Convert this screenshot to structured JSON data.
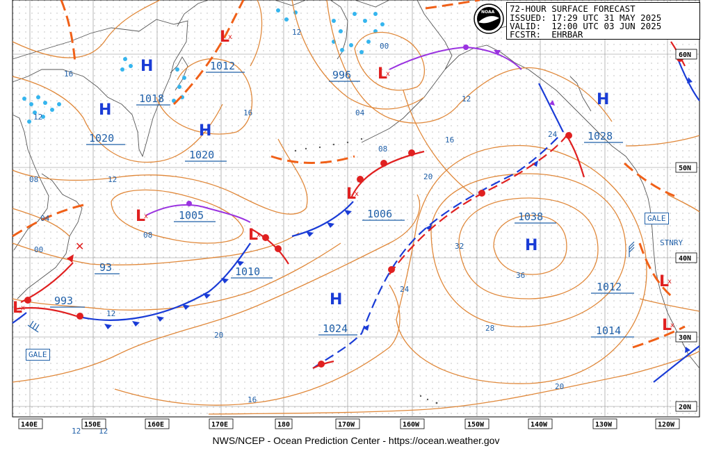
{
  "header": {
    "title_line": "72-HOUR SURFACE FORECAST",
    "issued_line": "ISSUED: 17:29 UTC 31 MAY 2025",
    "valid_line": "VALID:  12:00 UTC 03 JUN 2025",
    "fcstr_line": "FCSTR:  EHRBAR",
    "logo": "NOAA"
  },
  "footer": "NWS/NCEP - Ocean Prediction Center - https://ocean.weather.gov",
  "colors": {
    "isobar": "#e0883a",
    "pressure_label": "#1f5fa8",
    "high": "#1a3cd6",
    "low": "#e02020",
    "cold_front": "#1a3cd6",
    "warm_front": "#e02020",
    "occluded": "#9a33e0",
    "ice": "#35b5ee",
    "land": "#555555"
  },
  "longitude_labels": [
    "140E",
    "150E",
    "160E",
    "170E",
    "180",
    "170W",
    "160W",
    "150W",
    "140W",
    "130W",
    "120W"
  ],
  "latitude_labels": [
    "60N",
    "50N",
    "40N",
    "30N",
    "20N"
  ],
  "highs": [
    {
      "label": "H",
      "pressure": "1018"
    },
    {
      "label": "H",
      "pressure": "1020"
    },
    {
      "label": "H",
      "pressure": "1020"
    },
    {
      "label": "H",
      "pressure": "1038"
    },
    {
      "label": "H",
      "pressure": "1024"
    },
    {
      "label": "H",
      "pressure": "1028"
    }
  ],
  "lows": [
    {
      "label": "L",
      "pressure": "1012"
    },
    {
      "label": "L",
      "pressure": "996"
    },
    {
      "label": "L",
      "pressure": "1005"
    },
    {
      "label": "L",
      "pressure": "1010"
    },
    {
      "label": "L",
      "pressure": "1006"
    },
    {
      "label": "L",
      "pressure": "993"
    },
    {
      "label": "L",
      "pressure": "1012"
    },
    {
      "label": "L",
      "pressure": "1014"
    }
  ],
  "pressure_extra": [
    "93"
  ],
  "isobar_labels": [
    "16",
    "12",
    "08",
    "04",
    "00",
    "12",
    "08",
    "12",
    "20",
    "16",
    "12",
    "16",
    "20",
    "24",
    "28",
    "32",
    "36",
    "20",
    "16",
    "24",
    "12",
    "12",
    "08",
    "04",
    "00"
  ],
  "warning_boxes": [
    "GALE",
    "GALE",
    "STNRY"
  ]
}
